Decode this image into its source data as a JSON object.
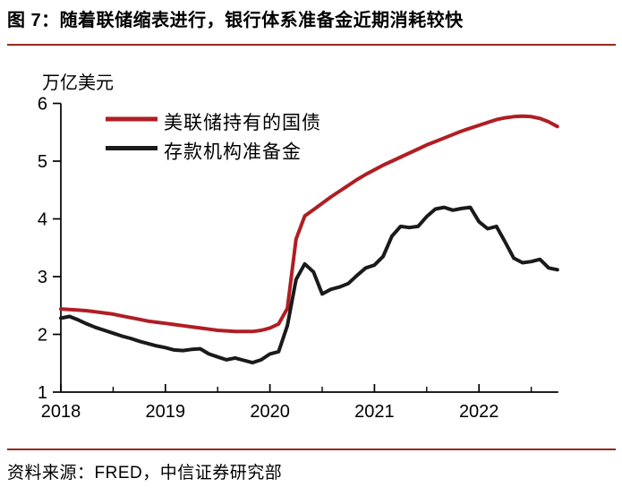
{
  "figure": {
    "title": "图 7：随着联储缩表进行，银行体系准备金近期消耗较快",
    "source": "资料来源：FRED，中信证券研究部"
  },
  "colors": {
    "accent_red": "#AF1E24",
    "separator_red": "#962A1E",
    "line_black": "#1A1A1A",
    "axis_black": "#000000",
    "background": "#FFFFFF"
  },
  "chart_data": {
    "type": "line",
    "unit_label": "万亿美元",
    "x_tick_labels": [
      "2018",
      "2019",
      "2020",
      "2021",
      "2022"
    ],
    "x_tick_years": [
      2018,
      2019,
      2020,
      2021,
      2022
    ],
    "x_minor_tick_years": [
      2018.5,
      2019.5,
      2020.5,
      2021.5,
      2022.5
    ],
    "y_ticks": [
      1,
      2,
      3,
      4,
      5,
      6
    ],
    "ylim": [
      1,
      6
    ],
    "x_start_year": 2018,
    "x_end_year": 2022.75,
    "points_per_year": 12,
    "grid": false,
    "legend_position": "top-left-inside",
    "series": [
      {
        "name": "美联储持有的国债",
        "color": "#AF1E24",
        "values": [
          2.44,
          2.43,
          2.42,
          2.41,
          2.39,
          2.37,
          2.35,
          2.32,
          2.29,
          2.26,
          2.23,
          2.21,
          2.19,
          2.17,
          2.15,
          2.13,
          2.11,
          2.09,
          2.07,
          2.06,
          2.05,
          2.05,
          2.05,
          2.07,
          2.11,
          2.18,
          2.45,
          3.65,
          4.05,
          4.16,
          4.27,
          4.38,
          4.48,
          4.58,
          4.68,
          4.77,
          4.85,
          4.93,
          5.0,
          5.07,
          5.14,
          5.21,
          5.28,
          5.34,
          5.4,
          5.46,
          5.52,
          5.57,
          5.62,
          5.67,
          5.72,
          5.75,
          5.77,
          5.78,
          5.77,
          5.74,
          5.68,
          5.6
        ]
      },
      {
        "name": "存款机构准备金",
        "color": "#1A1A1A",
        "values": [
          2.28,
          2.31,
          2.25,
          2.18,
          2.12,
          2.07,
          2.02,
          1.97,
          1.93,
          1.88,
          1.84,
          1.8,
          1.77,
          1.73,
          1.72,
          1.74,
          1.75,
          1.66,
          1.61,
          1.56,
          1.59,
          1.55,
          1.51,
          1.56,
          1.66,
          1.7,
          2.15,
          2.95,
          3.22,
          3.08,
          2.7,
          2.78,
          2.82,
          2.88,
          3.02,
          3.15,
          3.2,
          3.35,
          3.7,
          3.87,
          3.85,
          3.87,
          4.04,
          4.17,
          4.2,
          4.15,
          4.18,
          4.2,
          3.95,
          3.83,
          3.87,
          3.6,
          3.32,
          3.24,
          3.26,
          3.3,
          3.15,
          3.12
        ]
      }
    ]
  }
}
